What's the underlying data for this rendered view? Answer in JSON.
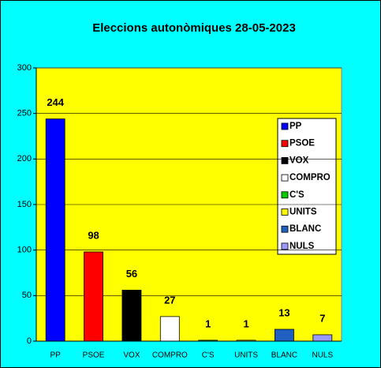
{
  "chart_data": {
    "type": "bar",
    "title": "Eleccions autonòmiques 28-05-2023",
    "categories": [
      "PP",
      "PSOE",
      "VOX",
      "COMPRO",
      "C'S",
      "UNITS",
      "BLANC",
      "NULS"
    ],
    "values": [
      244,
      98,
      56,
      27,
      1,
      1,
      13,
      7
    ],
    "colors": [
      "#0000ff",
      "#ff0000",
      "#000000",
      "#ffffff",
      "#00cc00",
      "#ffff00",
      "#1f5fbf",
      "#9999ff"
    ],
    "ylim": [
      0,
      300
    ],
    "yticks": [
      0,
      50,
      100,
      150,
      200,
      250,
      300
    ],
    "grid": true,
    "legend": "right"
  }
}
